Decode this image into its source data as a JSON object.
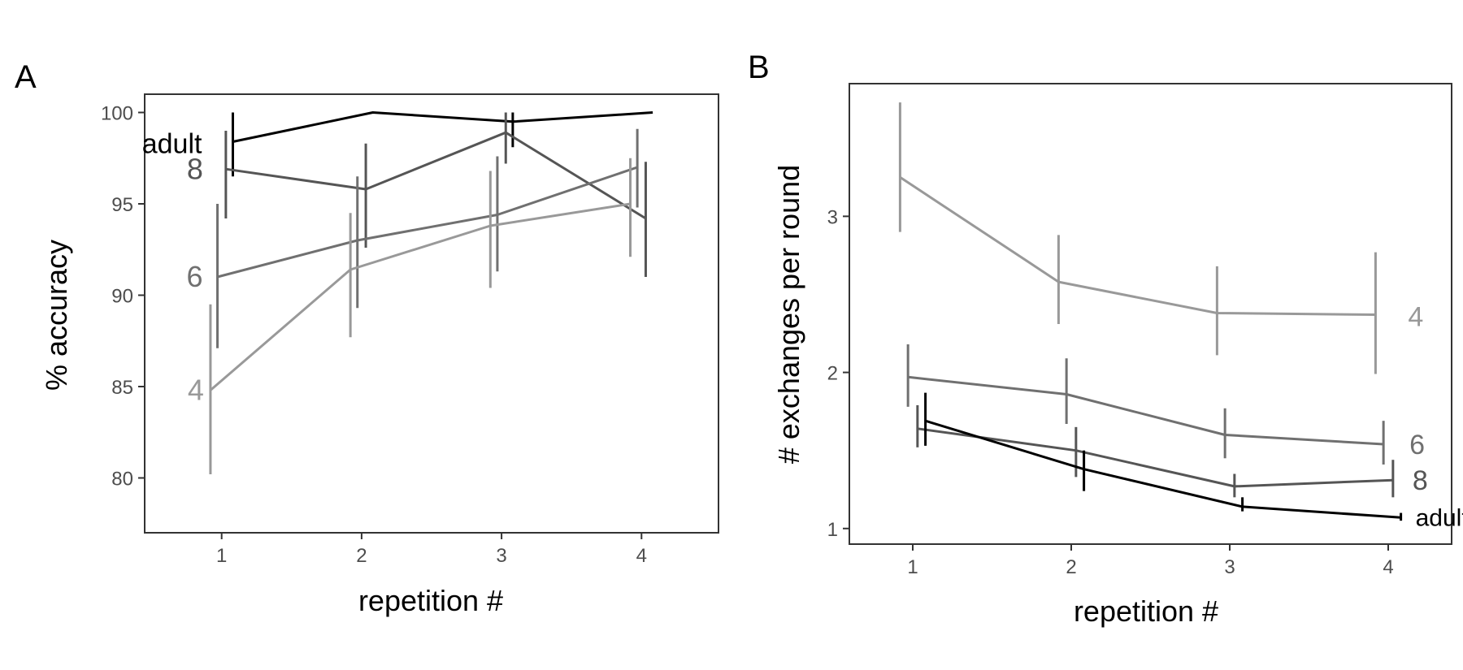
{
  "chart_data": [
    {
      "panel": "A",
      "type": "line",
      "xlabel": "repetition #",
      "ylabel": "% accuracy",
      "xlim": [
        0.45,
        4.55
      ],
      "ylim": [
        77,
        101
      ],
      "x_ticks": [
        1,
        2,
        3,
        4
      ],
      "y_ticks": [
        80,
        85,
        90,
        95,
        100
      ],
      "series": [
        {
          "name": "adult",
          "color": "#000000",
          "label_size": 34,
          "x": [
            1.08,
            2.08,
            3.08,
            4.08
          ],
          "y": [
            98.4,
            100,
            99.5,
            100
          ],
          "err_low": [
            96.5,
            100,
            98.1,
            100
          ],
          "err_high": [
            100,
            100,
            100,
            100
          ]
        },
        {
          "name": "8",
          "color": "#555555",
          "label_size": 36,
          "x": [
            1.03,
            2.03,
            3.03,
            4.03
          ],
          "y": [
            96.9,
            95.8,
            98.9,
            94.2
          ],
          "err_low": [
            94.2,
            92.6,
            97.2,
            91.0
          ],
          "err_high": [
            99.0,
            98.3,
            100,
            97.3
          ]
        },
        {
          "name": "6",
          "color": "#707070",
          "label_size": 36,
          "x": [
            0.97,
            1.97,
            2.97,
            3.97
          ],
          "y": [
            91.0,
            93.0,
            94.4,
            97.0
          ],
          "err_low": [
            87.1,
            89.3,
            91.3,
            94.8
          ],
          "err_high": [
            95.0,
            96.5,
            97.6,
            99.1
          ]
        },
        {
          "name": "4",
          "color": "#999999",
          "label_size": 36,
          "x": [
            0.92,
            1.92,
            2.92,
            3.92
          ],
          "y": [
            84.8,
            91.4,
            93.8,
            95.0
          ],
          "err_low": [
            80.2,
            87.7,
            90.4,
            92.1
          ],
          "err_high": [
            89.5,
            94.5,
            96.8,
            97.5
          ]
        }
      ]
    },
    {
      "panel": "B",
      "type": "line",
      "xlabel": "repetition #",
      "ylabel": "# exchanges per round",
      "xlim": [
        0.6,
        4.4
      ],
      "ylim": [
        0.9,
        3.85
      ],
      "x_ticks": [
        1,
        2,
        3,
        4
      ],
      "y_ticks": [
        1,
        2,
        3
      ],
      "series": [
        {
          "name": "4",
          "color": "#999999",
          "label_size": 34,
          "x": [
            0.92,
            1.92,
            2.92,
            3.92
          ],
          "y": [
            3.25,
            2.58,
            2.38,
            2.37
          ],
          "err_low": [
            2.9,
            2.31,
            2.11,
            1.99
          ],
          "err_high": [
            3.73,
            2.88,
            2.68,
            2.77
          ]
        },
        {
          "name": "6",
          "color": "#707070",
          "label_size": 34,
          "x": [
            0.97,
            1.97,
            2.97,
            3.97
          ],
          "y": [
            1.97,
            1.86,
            1.6,
            1.54
          ],
          "err_low": [
            1.78,
            1.67,
            1.45,
            1.41
          ],
          "err_high": [
            2.18,
            2.09,
            1.77,
            1.69
          ]
        },
        {
          "name": "8",
          "color": "#555555",
          "label_size": 34,
          "x": [
            1.03,
            2.03,
            3.03,
            4.03
          ],
          "y": [
            1.64,
            1.5,
            1.27,
            1.31
          ],
          "err_low": [
            1.52,
            1.33,
            1.2,
            1.2
          ],
          "err_high": [
            1.79,
            1.65,
            1.35,
            1.44
          ]
        },
        {
          "name": "adult",
          "color": "#000000",
          "label_size": 30,
          "x": [
            1.08,
            2.08,
            3.08,
            4.08
          ],
          "y": [
            1.69,
            1.38,
            1.14,
            1.07
          ],
          "err_low": [
            1.53,
            1.24,
            1.11,
            1.05
          ],
          "err_high": [
            1.87,
            1.5,
            1.2,
            1.1
          ]
        }
      ]
    }
  ]
}
